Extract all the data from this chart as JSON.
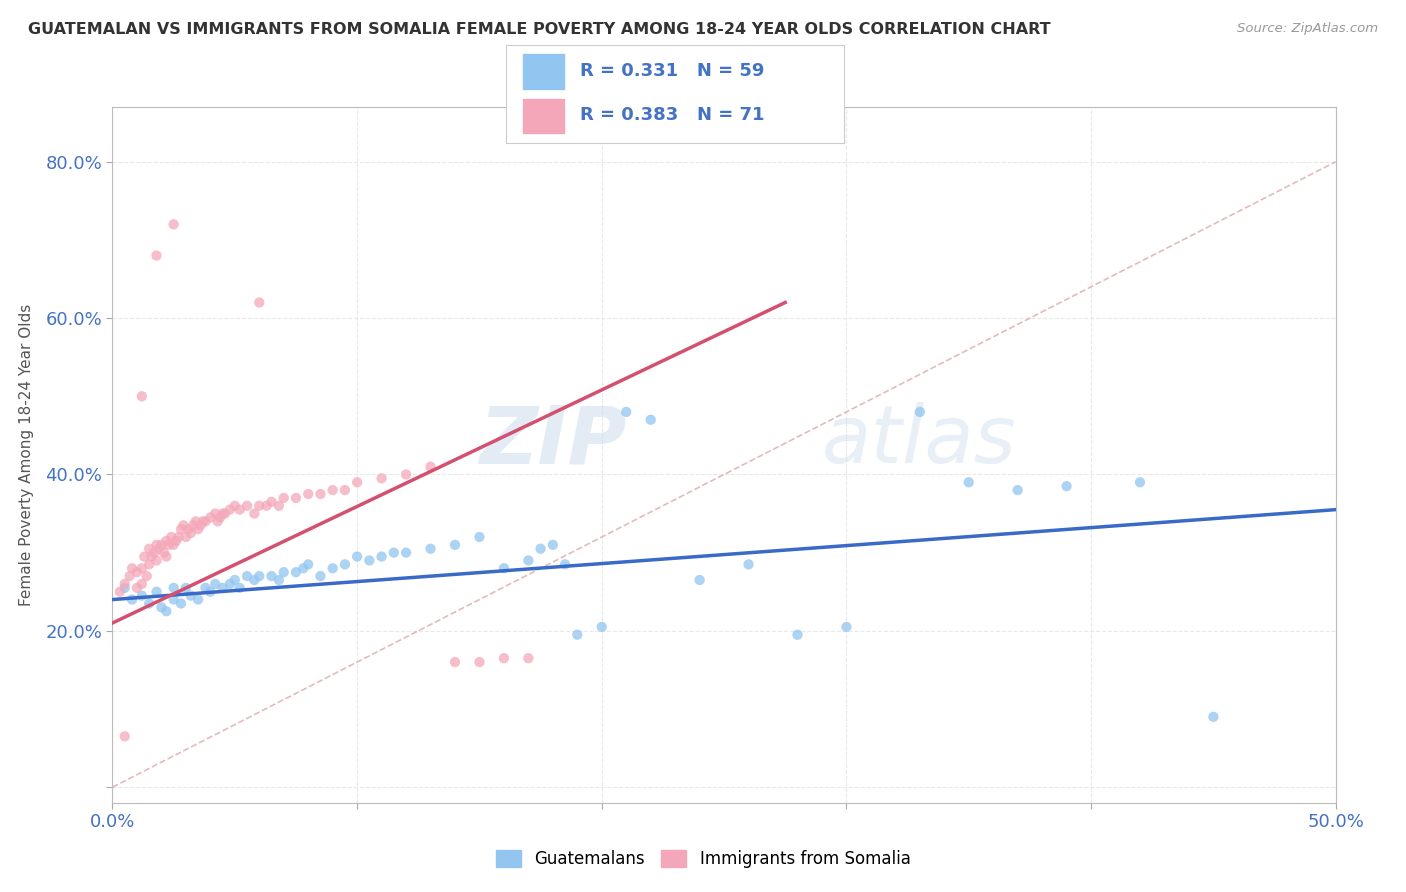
{
  "title": "GUATEMALAN VS IMMIGRANTS FROM SOMALIA FEMALE POVERTY AMONG 18-24 YEAR OLDS CORRELATION CHART",
  "source": "Source: ZipAtlas.com",
  "ylabel": "Female Poverty Among 18-24 Year Olds",
  "xlim": [
    0.0,
    0.5
  ],
  "ylim": [
    -0.02,
    0.87
  ],
  "xticks": [
    0.0,
    0.1,
    0.2,
    0.3,
    0.4,
    0.5
  ],
  "yticks": [
    0.0,
    0.2,
    0.4,
    0.6,
    0.8
  ],
  "xticklabels": [
    "0.0%",
    "",
    "",
    "",
    "",
    "50.0%"
  ],
  "yticklabels": [
    "",
    "20.0%",
    "40.0%",
    "60.0%",
    "80.0%"
  ],
  "blue_R": "0.331",
  "blue_N": "59",
  "pink_R": "0.383",
  "pink_N": "71",
  "blue_color": "#92C5F0",
  "pink_color": "#F4A7B9",
  "blue_line_color": "#3A6AC8",
  "pink_line_color": "#D45070",
  "diag_line_color": "#DDAAAA",
  "background_color": "#FFFFFF",
  "grid_color": "#E8E8E8",
  "watermark_zip": "ZIP",
  "watermark_atlas": "atlas",
  "legend_label_blue": "Guatemalans",
  "legend_label_pink": "Immigrants from Somalia",
  "blue_scatter_x": [
    0.005,
    0.008,
    0.012,
    0.015,
    0.018,
    0.02,
    0.022,
    0.025,
    0.025,
    0.028,
    0.03,
    0.032,
    0.035,
    0.038,
    0.04,
    0.042,
    0.045,
    0.048,
    0.05,
    0.052,
    0.055,
    0.058,
    0.06,
    0.065,
    0.068,
    0.07,
    0.075,
    0.078,
    0.08,
    0.085,
    0.09,
    0.095,
    0.1,
    0.105,
    0.11,
    0.115,
    0.12,
    0.13,
    0.14,
    0.15,
    0.16,
    0.17,
    0.175,
    0.18,
    0.185,
    0.19,
    0.2,
    0.21,
    0.22,
    0.24,
    0.26,
    0.28,
    0.3,
    0.33,
    0.35,
    0.37,
    0.39,
    0.42,
    0.45
  ],
  "blue_scatter_y": [
    0.255,
    0.24,
    0.245,
    0.235,
    0.25,
    0.23,
    0.225,
    0.24,
    0.255,
    0.235,
    0.255,
    0.245,
    0.24,
    0.255,
    0.25,
    0.26,
    0.255,
    0.26,
    0.265,
    0.255,
    0.27,
    0.265,
    0.27,
    0.27,
    0.265,
    0.275,
    0.275,
    0.28,
    0.285,
    0.27,
    0.28,
    0.285,
    0.295,
    0.29,
    0.295,
    0.3,
    0.3,
    0.305,
    0.31,
    0.32,
    0.28,
    0.29,
    0.305,
    0.31,
    0.285,
    0.195,
    0.205,
    0.48,
    0.47,
    0.265,
    0.285,
    0.195,
    0.205,
    0.48,
    0.39,
    0.38,
    0.385,
    0.39,
    0.09
  ],
  "pink_scatter_x": [
    0.003,
    0.005,
    0.007,
    0.008,
    0.01,
    0.01,
    0.012,
    0.012,
    0.013,
    0.014,
    0.015,
    0.015,
    0.016,
    0.017,
    0.018,
    0.018,
    0.019,
    0.02,
    0.021,
    0.022,
    0.022,
    0.023,
    0.024,
    0.025,
    0.026,
    0.027,
    0.028,
    0.029,
    0.03,
    0.031,
    0.032,
    0.033,
    0.034,
    0.035,
    0.036,
    0.037,
    0.038,
    0.04,
    0.042,
    0.043,
    0.044,
    0.045,
    0.046,
    0.048,
    0.05,
    0.052,
    0.055,
    0.058,
    0.06,
    0.063,
    0.065,
    0.068,
    0.07,
    0.075,
    0.08,
    0.085,
    0.09,
    0.095,
    0.1,
    0.11,
    0.12,
    0.13,
    0.14,
    0.15,
    0.16,
    0.17,
    0.018,
    0.025,
    0.06,
    0.012,
    0.005
  ],
  "pink_scatter_y": [
    0.25,
    0.26,
    0.27,
    0.28,
    0.255,
    0.275,
    0.26,
    0.28,
    0.295,
    0.27,
    0.305,
    0.285,
    0.295,
    0.3,
    0.31,
    0.29,
    0.305,
    0.31,
    0.3,
    0.315,
    0.295,
    0.31,
    0.32,
    0.31,
    0.315,
    0.32,
    0.33,
    0.335,
    0.32,
    0.33,
    0.325,
    0.335,
    0.34,
    0.33,
    0.335,
    0.34,
    0.34,
    0.345,
    0.35,
    0.34,
    0.345,
    0.35,
    0.35,
    0.355,
    0.36,
    0.355,
    0.36,
    0.35,
    0.36,
    0.36,
    0.365,
    0.36,
    0.37,
    0.37,
    0.375,
    0.375,
    0.38,
    0.38,
    0.39,
    0.395,
    0.4,
    0.41,
    0.16,
    0.16,
    0.165,
    0.165,
    0.68,
    0.72,
    0.62,
    0.5,
    0.065
  ]
}
